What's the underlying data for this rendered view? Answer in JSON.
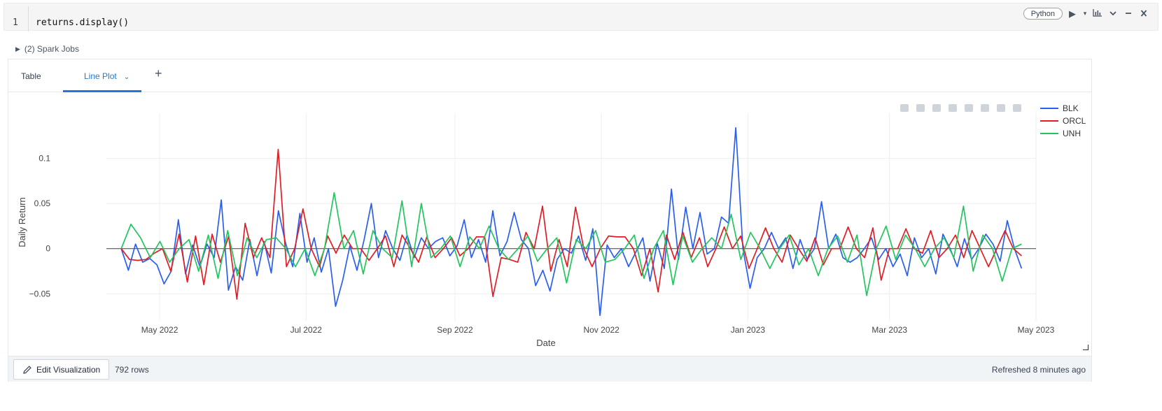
{
  "cell": {
    "line_number": "1",
    "code": "returns.display()",
    "language": "Python",
    "icons": [
      "run-icon",
      "run-dropdown-icon",
      "chart-icon",
      "collapse-icon",
      "minimize-icon",
      "close-icon"
    ]
  },
  "spark_jobs": {
    "label": "(2) Spark Jobs"
  },
  "tabs": {
    "table": "Table",
    "line_plot": "Line Plot",
    "add": "+"
  },
  "modebar_icons": [
    "camera-icon",
    "zoom-icon",
    "pan-icon",
    "zoom-in-icon",
    "zoom-out-icon",
    "autoscale-icon",
    "hover-closest-icon",
    "hover-compare-icon"
  ],
  "footer": {
    "edit_label": "Edit Visualization",
    "rows": "792 rows",
    "refreshed": "Refreshed 8 minutes ago"
  },
  "chart_data": {
    "type": "line",
    "xlabel": "Date",
    "ylabel": "Daily Return",
    "x_ticks": [
      "May 2022",
      "Jul 2022",
      "Sep 2022",
      "Nov 2022",
      "Jan 2023",
      "Mar 2023",
      "May 2023"
    ],
    "x_tick_dates": [
      "2022-05-01",
      "2022-07-01",
      "2022-09-01",
      "2022-11-01",
      "2023-01-01",
      "2023-03-01",
      "2023-05-01"
    ],
    "y_ticks": [
      "0.1",
      "0.05",
      "0",
      "−0.05"
    ],
    "y_tick_values": [
      0.1,
      0.05,
      0,
      -0.05
    ],
    "xlim": [
      "2022-04-03",
      "2023-05-01"
    ],
    "ylim": [
      -0.08,
      0.15
    ],
    "grid": true,
    "legend_position": "top-right",
    "series": [
      {
        "name": "BLK",
        "color": "#2a5fee",
        "values": [
          [
            0.0,
            -0.024,
            0.005,
            -0.015,
            -0.011,
            -0.018,
            -0.039,
            -0.025,
            0.032,
            -0.028,
            0.004,
            -0.02,
            0.005,
            -0.01,
            0.054,
            -0.046,
            -0.02,
            -0.035,
            0.01,
            -0.03,
            0.008,
            -0.027,
            0.042,
            0.006,
            -0.02,
            0.039,
            -0.015,
            0.012,
            -0.026,
            0.0,
            -0.064,
            -0.035,
            0.003,
            -0.024,
            0.01,
            0.05,
            -0.01,
            0.02,
            0.0,
            -0.013,
            0.015,
            -0.01,
            0.012,
            0.0,
            0.008,
            0.012,
            -0.008,
            0.003,
            0.032,
            -0.01,
            0.01,
            -0.015,
            0.042,
            -0.008,
            0.008,
            0.04,
            0.01,
            0.0,
            -0.041,
            -0.024,
            -0.047,
            -0.012,
            0.0,
            -0.005,
            0.014,
            -0.013,
            0.022,
            -0.074,
            0.004,
            -0.01,
            0.0,
            -0.02,
            -0.004,
            0.012,
            -0.036,
            0.006,
            -0.022,
            0.066,
            -0.012,
            0.046,
            0.0,
            0.04,
            -0.006,
            0.0,
            0.035,
            0.028,
            0.134,
            0.0,
            -0.044,
            -0.01,
            0.0,
            0.018,
            0.0,
            0.012,
            -0.022,
            0.01,
            -0.012,
            0.0,
            0.052,
            0.0,
            0.016,
            -0.01,
            -0.015,
            -0.01,
            0.0,
            0.012,
            -0.012,
            0.0,
            -0.02,
            -0.006,
            -0.03,
            0.012,
            -0.01,
            0.0,
            -0.028,
            0.016,
            0.0,
            -0.02,
            0.011,
            -0.012,
            0.0,
            0.016,
            0.005,
            -0.014,
            0.031,
            0.0,
            -0.022
          ]
        ]
      },
      {
        "name": "ORCL",
        "color": "#e11d24",
        "values": [
          [
            0.0,
            -0.012,
            -0.013,
            -0.012,
            -0.005,
            0.0,
            -0.025,
            0.016,
            -0.037,
            0.014,
            -0.04,
            0.016,
            -0.015,
            0.014,
            -0.056,
            0.028,
            -0.01,
            0.012,
            -0.01,
            0.11,
            -0.02,
            0.0,
            0.044,
            0.0,
            -0.02,
            0.014,
            -0.005,
            0.015,
            0.0,
            0.0,
            -0.013,
            0.0,
            0.014,
            -0.02,
            0.015,
            0.0,
            -0.015,
            0.013,
            -0.01,
            0.0,
            0.012,
            -0.008,
            0.0,
            0.013,
            0.013,
            -0.053,
            -0.01,
            -0.012,
            -0.015,
            0.018,
            0.0,
            0.047,
            -0.025,
            0.01,
            -0.02,
            0.046,
            0.0,
            -0.02,
            0.0,
            0.014,
            0.013,
            0.013,
            0.0,
            -0.03,
            0.0,
            -0.048,
            0.015,
            -0.012,
            0.018,
            -0.01,
            0.012,
            -0.02,
            0.0,
            0.024,
            0.0,
            0.014,
            -0.022,
            0.0,
            0.023,
            0.0,
            -0.015,
            0.015,
            0.0,
            -0.014,
            0.012,
            -0.018,
            0.0,
            0.0,
            0.024,
            0.0,
            -0.01,
            0.023,
            -0.035,
            0.0,
            0.0,
            0.022,
            0.0,
            -0.005,
            0.02,
            -0.01,
            0.0,
            0.015,
            -0.01,
            0.02,
            0.0,
            -0.02,
            0.0,
            0.02,
            0.0,
            -0.008
          ]
        ]
      },
      {
        "name": "UNH",
        "color": "#22c55e",
        "values": [
          [
            0.0,
            0.027,
            0.012,
            -0.01,
            0.008,
            -0.015,
            0.0,
            0.01,
            -0.025,
            0.015,
            -0.033,
            0.02,
            -0.03,
            0.012,
            -0.01,
            0.01,
            0.012,
            0.0,
            -0.02,
            0.0,
            -0.03,
            0.0,
            0.062,
            0.0,
            0.02,
            -0.028,
            0.02,
            0.0,
            -0.01,
            0.053,
            -0.02,
            0.05,
            -0.01,
            0.0,
            0.014,
            -0.02,
            0.013,
            0.0,
            0.025,
            0.0,
            -0.012,
            0.0,
            0.014,
            -0.014,
            0.0,
            0.012,
            -0.038,
            0.01,
            0.0,
            0.02,
            -0.015,
            -0.012,
            0.0,
            0.015,
            -0.033,
            0.0,
            0.02,
            -0.04,
            0.014,
            -0.015,
            0.0,
            0.012,
            0.0,
            0.038,
            -0.012,
            0.018,
            0.0,
            -0.022,
            0.0,
            0.015,
            -0.018,
            0.0,
            -0.03,
            0.0,
            0.014,
            -0.015,
            0.015,
            -0.052,
            0.0,
            0.025,
            -0.012,
            0.015,
            0.0,
            -0.02,
            0.0,
            0.012,
            -0.01,
            0.047,
            -0.025,
            0.015,
            0.0,
            -0.036,
            0.0,
            0.005
          ]
        ]
      }
    ]
  }
}
